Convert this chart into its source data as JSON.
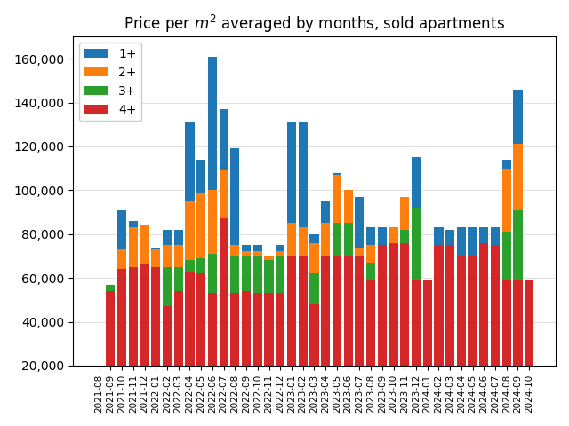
{
  "title": "Price per $m^2$ averaged by months, sold apartments",
  "categories": [
    "2021-08",
    "2021-09",
    "2021-10",
    "2021-11",
    "2021-12",
    "2022-01",
    "2022-02",
    "2022-03",
    "2022-04",
    "2022-05",
    "2022-06",
    "2022-07",
    "2022-08",
    "2022-09",
    "2022-10",
    "2022-11",
    "2022-12",
    "2023-01",
    "2023-02",
    "2023-03",
    "2023-04",
    "2023-05",
    "2023-06",
    "2023-07",
    "2023-08",
    "2023-09",
    "2023-10",
    "2023-11",
    "2023-12",
    "2024-01",
    "2024-02",
    "2024-03",
    "2024-04",
    "2024-05",
    "2024-06",
    "2024-07",
    "2024-08",
    "2024-09",
    "2024-10"
  ],
  "colors": {
    "1+": "#1f77b4",
    "2+": "#ff7f0e",
    "3+": "#2ca02c",
    "4+": "#d62728"
  },
  "ylim": [
    20000,
    170000
  ],
  "yticks": [
    20000,
    40000,
    60000,
    80000,
    100000,
    120000,
    140000,
    160000
  ],
  "d4": [
    20000,
    54000,
    64000,
    65000,
    66000,
    65000,
    47000,
    54000,
    63000,
    62000,
    53000,
    87000,
    53000,
    54000,
    53000,
    53000,
    53000,
    70000,
    70000,
    48000,
    70000,
    70000,
    70000,
    70000,
    59000,
    75000,
    76000,
    76000,
    59000,
    59000,
    75000,
    75000,
    70000,
    70000,
    76000,
    75000,
    59000,
    59000,
    59000
  ],
  "d3": [
    0,
    3000,
    0,
    0,
    0,
    0,
    18000,
    11000,
    5000,
    7000,
    18000,
    0,
    17000,
    16000,
    17000,
    15000,
    17000,
    0,
    0,
    14000,
    0,
    15000,
    15000,
    0,
    8000,
    0,
    0,
    6000,
    33000,
    0,
    0,
    0,
    0,
    0,
    0,
    0,
    22000,
    32000,
    0
  ],
  "d2": [
    0,
    0,
    9000,
    18000,
    18000,
    8000,
    10000,
    10000,
    27000,
    30000,
    29000,
    22000,
    5000,
    2000,
    2000,
    2000,
    2000,
    15000,
    13000,
    14000,
    15000,
    22000,
    15000,
    4000,
    8000,
    0,
    7000,
    15000,
    0,
    0,
    0,
    0,
    0,
    0,
    0,
    0,
    29000,
    30000,
    0
  ],
  "d1": [
    0,
    0,
    18000,
    3000,
    0,
    1000,
    7000,
    7000,
    36000,
    15000,
    61000,
    28000,
    44000,
    3000,
    3000,
    0,
    3000,
    46000,
    48000,
    4000,
    10000,
    1000,
    0,
    23000,
    8000,
    8000,
    0,
    0,
    23000,
    0,
    8000,
    7000,
    13000,
    13000,
    7000,
    8000,
    4000,
    25000,
    0
  ]
}
